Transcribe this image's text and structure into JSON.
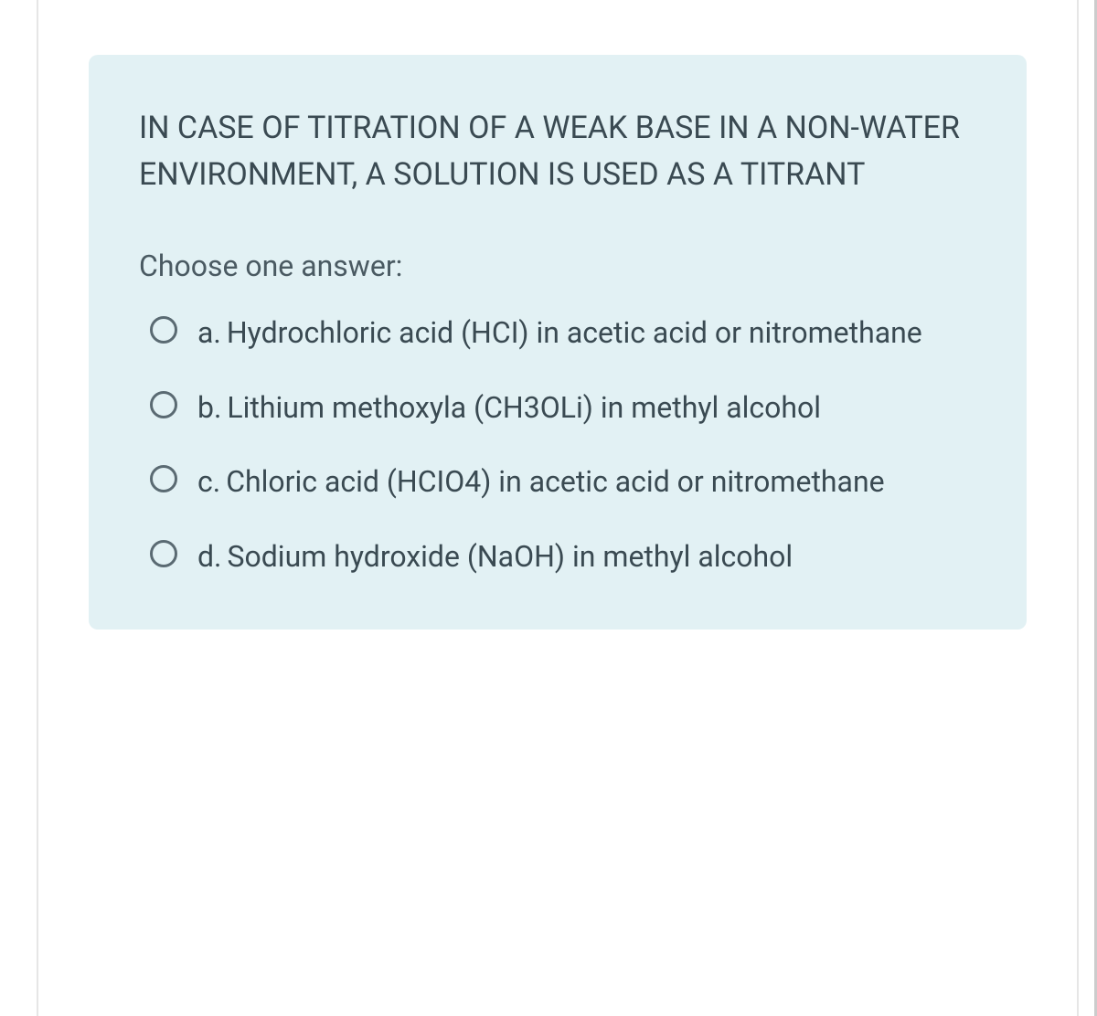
{
  "card": {
    "background_color": "#e2f1f4",
    "border_radius": 10
  },
  "question": {
    "text": "IN CASE OF TITRATION OF A WEAK BASE IN A NON-WATER ENVIRONMENT, A SOLUTION IS USED AS A TITRANT",
    "instruction": "Choose one answer:"
  },
  "options": [
    {
      "letter": "a.",
      "text": "Hydrochloric acid (HCI) in acetic acid or nitromethane"
    },
    {
      "letter": "b.",
      "text": "Lithium methoxyla (CH3OLi) in methyl alcohol"
    },
    {
      "letter": "c.",
      "text": "Chloric acid (HCIO4) in acetic acid or nitromethane"
    },
    {
      "letter": "d.",
      "text": "Sodium hydroxide (NaOH) in methyl alcohol"
    }
  ],
  "colors": {
    "text_primary": "#3a4a52",
    "text_secondary": "#4a5a62",
    "radio_border": "#5a6a72",
    "page_border": "#e6e6e6"
  },
  "typography": {
    "question_fontsize": 34,
    "instruction_fontsize": 32,
    "option_fontsize": 32
  }
}
